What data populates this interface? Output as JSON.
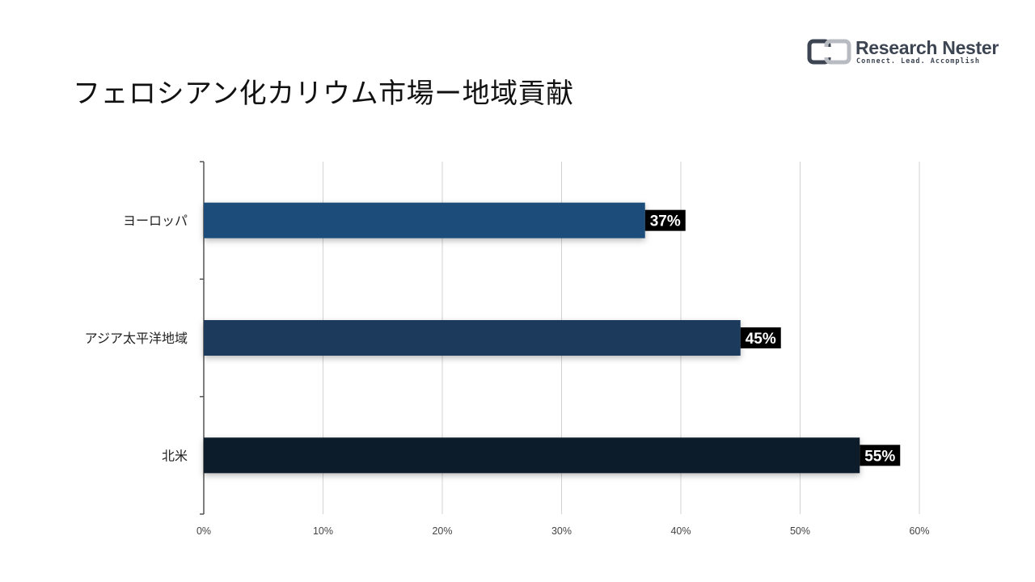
{
  "title": "フェロシアン化カリウム市場ー地域貢献",
  "logo": {
    "name": "Research Nester",
    "tagline": "Connect. Lead. Accomplish"
  },
  "chart_data": {
    "type": "bar",
    "orientation": "horizontal",
    "categories": [
      "ヨーロッパ",
      "アジア太平洋地域",
      "北米"
    ],
    "values": [
      37,
      45,
      55
    ],
    "data_labels": [
      "37%",
      "45%",
      "55%"
    ],
    "bar_colors": [
      "#1f4e7a",
      "#1b3a5c",
      "#0f1d2b"
    ],
    "xlim": [
      0,
      60
    ],
    "xticks": [
      0,
      10,
      20,
      30,
      40,
      50,
      60
    ],
    "xtick_labels": [
      "0%",
      "10%",
      "20%",
      "30%",
      "40%",
      "50%",
      "60%"
    ],
    "grid": "vertical",
    "title": "",
    "xlabel": "",
    "ylabel": ""
  }
}
